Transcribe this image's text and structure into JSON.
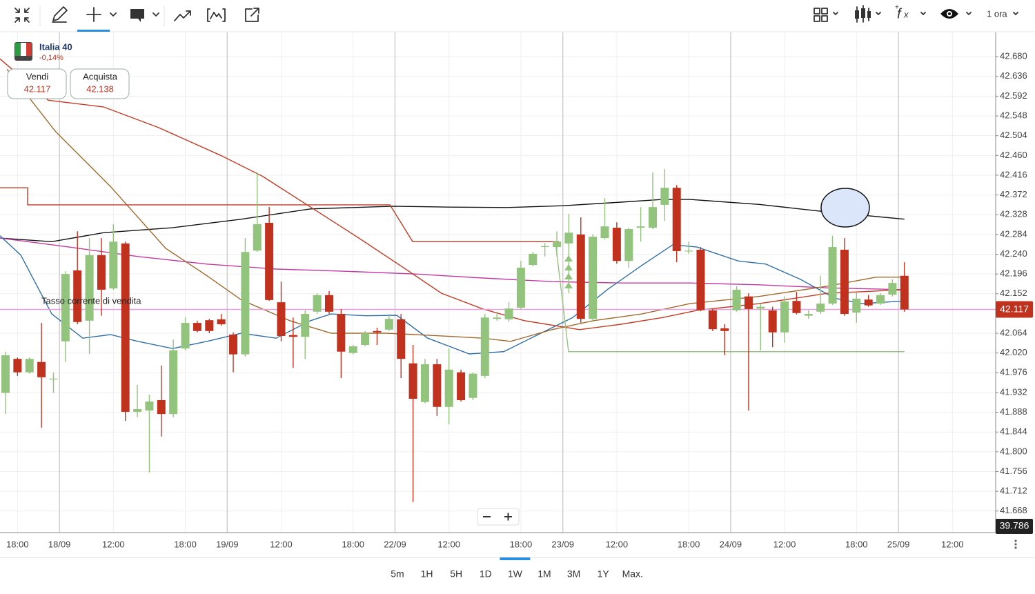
{
  "toolbar": {
    "interval": "1 ora"
  },
  "instrument": {
    "name": "Italia 40",
    "change": "-0,14%",
    "sell_label": "Vendi",
    "sell_price": 42.117,
    "buy_label": "Acquista",
    "buy_price": 42.138
  },
  "annotation": "Tasso corrente di vendita",
  "timeframes": [
    "5m",
    "1H",
    "5H",
    "1D",
    "1W",
    "1M",
    "3M",
    "1Y",
    "Max."
  ],
  "selected_timeframe": 4,
  "chart_data": {
    "type": "candlestick",
    "up_color": "#93c47d",
    "down_color": "#c0321e",
    "x": [
      0,
      1,
      2,
      3,
      4,
      5,
      6,
      7,
      8,
      9,
      10,
      11,
      12,
      13,
      14,
      15,
      16,
      17,
      18,
      19,
      20,
      21,
      22,
      23,
      24,
      25,
      26,
      27,
      28,
      29,
      30,
      31,
      32,
      33,
      34,
      35,
      36,
      37,
      38,
      39,
      40,
      41,
      42,
      43,
      44,
      45,
      46,
      47,
      48,
      49,
      50,
      51,
      52,
      53,
      54,
      55,
      56,
      57,
      58,
      59,
      60,
      61,
      62,
      63,
      64,
      65,
      66,
      67,
      68,
      69,
      70,
      71,
      72,
      73,
      74,
      75
    ],
    "open": [
      41.931,
      42.007,
      41.977,
      42.0,
      41.961,
      42.046,
      42.204,
      42.092,
      42.238,
      42.164,
      42.264,
      41.889,
      41.892,
      41.915,
      41.884,
      42.03,
      42.087,
      42.093,
      42.095,
      42.061,
      42.017,
      42.248,
      42.31,
      42.133,
      42.06,
      42.056,
      42.112,
      42.149,
      42.107,
      42.02,
      42.038,
      42.069,
      42.072,
      42.095,
      41.997,
      41.911,
      41.995,
      41.9,
      41.977,
      41.92,
      41.969,
      42.096,
      42.095,
      42.121,
      42.216,
      42.256,
      42.256,
      42.264,
      42.284,
      42.096,
      42.276,
      42.299,
      42.225,
      42.299,
      42.299,
      42.35,
      42.388,
      42.247,
      42.25,
      42.115,
      42.075,
      42.115,
      42.146,
      42.119,
      42.115,
      42.066,
      42.136,
      42.103,
      42.112,
      42.13,
      42.25,
      42.11,
      42.139,
      42.13,
      42.15,
      42.192
    ],
    "high": [
      42.023,
      42.01,
      42.01,
      42.087,
      41.977,
      42.202,
      42.291,
      42.276,
      42.276,
      42.307,
      42.268,
      41.949,
      41.927,
      41.992,
      42.05,
      42.099,
      42.092,
      42.096,
      42.107,
      42.066,
      42.276,
      42.422,
      42.345,
      42.179,
      42.099,
      42.115,
      42.153,
      42.158,
      42.118,
      42.038,
      42.069,
      42.076,
      42.107,
      42.107,
      42.038,
      42.007,
      42.007,
      42.03,
      41.983,
      41.977,
      42.107,
      42.112,
      42.133,
      42.225,
      42.245,
      42.265,
      42.291,
      42.33,
      42.322,
      42.284,
      42.365,
      42.311,
      42.299,
      42.345,
      42.422,
      42.43,
      42.394,
      42.268,
      42.256,
      42.118,
      42.084,
      42.169,
      42.153,
      42.13,
      42.123,
      42.146,
      42.156,
      42.115,
      42.192,
      42.281,
      42.276,
      42.156,
      42.149,
      42.153,
      42.184,
      42.222
    ],
    "low": [
      41.884,
      41.969,
      41.974,
      41.854,
      41.931,
      42.0,
      42.084,
      42.018,
      42.103,
      42.161,
      41.869,
      41.877,
      41.754,
      41.834,
      41.877,
      42.026,
      42.066,
      42.064,
      42.081,
      41.977,
      42.012,
      42.245,
      42.136,
      42.046,
      41.987,
      42.007,
      42.107,
      42.107,
      41.964,
      42.017,
      42.035,
      42.038,
      42.069,
      41.964,
      41.688,
      41.908,
      41.88,
      41.861,
      41.912,
      41.915,
      41.964,
      42.092,
      42.089,
      42.118,
      42.213,
      42.235,
      42.235,
      42.153,
      42.087,
      42.089,
      42.273,
      42.219,
      42.21,
      42.268,
      42.296,
      42.314,
      42.222,
      42.241,
      42.113,
      42.069,
      42.015,
      42.112,
      41.892,
      42.026,
      42.033,
      42.043,
      42.106,
      42.096,
      42.107,
      42.127,
      42.103,
      42.087,
      42.123,
      42.127,
      42.146,
      42.112
    ],
    "close": [
      42.015,
      41.977,
      42.007,
      41.966,
      41.963,
      42.196,
      42.089,
      42.238,
      42.161,
      42.268,
      41.889,
      41.895,
      41.912,
      41.884,
      42.026,
      42.087,
      42.069,
      42.069,
      42.084,
      42.017,
      42.245,
      42.307,
      42.138,
      42.058,
      42.056,
      42.107,
      42.149,
      42.112,
      42.023,
      42.035,
      42.064,
      42.066,
      42.096,
      42.007,
      41.918,
      41.995,
      41.9,
      41.983,
      41.915,
      41.974,
      42.099,
      42.099,
      42.119,
      42.21,
      42.241,
      42.258,
      42.268,
      42.288,
      42.096,
      42.279,
      42.302,
      42.225,
      42.296,
      42.302,
      42.345,
      42.388,
      42.247,
      42.248,
      42.116,
      42.073,
      42.069,
      42.161,
      42.118,
      42.123,
      42.066,
      42.135,
      42.109,
      42.107,
      42.13,
      42.256,
      42.107,
      42.141,
      42.126,
      42.149,
      42.176,
      42.117
    ],
    "lines": [
      {
        "color": "#111111",
        "x": [
          -0.46,
          3.86,
          8.18,
          13.93,
          19.69,
          25.45,
          32.35,
          36.96,
          41.85,
          46.52,
          51.35,
          54.81,
          57.11,
          62.87,
          68.62,
          75
        ],
        "values": [
          42.276,
          42.268,
          42.288,
          42.299,
          42.318,
          42.341,
          42.347,
          42.345,
          42.344,
          42.348,
          42.356,
          42.362,
          42.362,
          42.351,
          42.334,
          42.318
        ]
      },
      {
        "color": "#c2399f",
        "x": [
          -0.46,
          5.3,
          11.05,
          16.81,
          22.57,
          28.33,
          34.08,
          39.84,
          45.6,
          51.35,
          57.11,
          62.87,
          68.62,
          75
        ],
        "values": [
          42.276,
          42.256,
          42.235,
          42.218,
          42.207,
          42.202,
          42.196,
          42.187,
          42.179,
          42.176,
          42.176,
          42.172,
          42.165,
          42.161
        ]
      },
      {
        "color": "#2f6fa8",
        "x": [
          -0.46,
          1.27,
          3.86,
          6.45,
          8.75,
          11.05,
          13.93,
          16.81,
          19.69,
          22.57,
          25.45,
          27.17,
          30.05,
          32.64,
          35.23,
          38.69,
          41.57,
          44.44,
          47.32,
          50.2,
          53.08,
          55.67,
          57.69,
          61.14,
          63.44,
          66.32,
          69.2,
          71.5,
          75
        ],
        "values": [
          42.281,
          42.238,
          42.107,
          42.053,
          42.061,
          42.046,
          42.03,
          42.046,
          42.064,
          42.053,
          42.092,
          42.107,
          42.103,
          42.104,
          42.053,
          42.018,
          42.023,
          42.061,
          42.099,
          42.161,
          42.215,
          42.261,
          42.256,
          42.225,
          42.218,
          42.184,
          42.142,
          42.13,
          42.136
        ]
      },
      {
        "color": "#c23a22",
        "x": [
          -0.46,
          3.57,
          8.18,
          12.78,
          17.96,
          21.42,
          25.45,
          29.48,
          32.93,
          36.38,
          39.84,
          43.29,
          47.9,
          51.35,
          54.81,
          57.69,
          62.87,
          68.62,
          75
        ],
        "values": [
          42.675,
          42.583,
          42.568,
          42.522,
          42.46,
          42.414,
          42.345,
          42.276,
          42.215,
          42.153,
          42.118,
          42.092,
          42.072,
          42.084,
          42.099,
          42.115,
          42.13,
          42.153,
          42.161
        ]
      },
      {
        "color": "#a0682a",
        "x": [
          0.12,
          4.15,
          8.75,
          13.36,
          16.81,
          19.69,
          23.72,
          27.17,
          31.78,
          36.38,
          39.84,
          42.14,
          45.6,
          49.05,
          53.08,
          57.11,
          62.87,
          68.62,
          72.65,
          75
        ],
        "values": [
          42.652,
          42.514,
          42.391,
          42.253,
          42.192,
          42.138,
          42.092,
          42.064,
          42.064,
          42.058,
          42.053,
          42.046,
          42.072,
          42.092,
          42.107,
          42.13,
          42.146,
          42.169,
          42.189,
          42.189
        ]
      },
      {
        "color": "#c23a22",
        "x": [
          -0.46,
          1.84,
          1.84,
          32.07,
          33.97,
          46.17
        ],
        "values": [
          42.388,
          42.388,
          42.35,
          42.35,
          42.268,
          42.268
        ]
      },
      {
        "color": "#93c47d",
        "x": [
          45.88,
          46.98,
          75
        ],
        "values": [
          42.268,
          42.023,
          42.023
        ]
      }
    ],
    "current_price": {
      "value": 42.117,
      "line_color": "#ec9be3",
      "color": "#c0321e"
    },
    "last_label": 39.786,
    "xlim": [
      -0.46,
      82.44
    ],
    "xticks": [
      {
        "value": 1,
        "label": "18:00"
      },
      {
        "value": 4.5,
        "label": "18/09"
      },
      {
        "value": 9,
        "label": "12:00"
      },
      {
        "value": 15,
        "label": "18:00"
      },
      {
        "value": 18.5,
        "label": "19/09"
      },
      {
        "value": 23,
        "label": "12:00"
      },
      {
        "value": 29,
        "label": "18:00"
      },
      {
        "value": 32.5,
        "label": "22/09"
      },
      {
        "value": 37,
        "label": "12:00"
      },
      {
        "value": 43,
        "label": "18:00"
      },
      {
        "value": 46.5,
        "label": "23/09"
      },
      {
        "value": 51,
        "label": "12:00"
      },
      {
        "value": 57,
        "label": "18:00"
      },
      {
        "value": 60.5,
        "label": "24/09"
      },
      {
        "value": 65,
        "label": "12:00"
      },
      {
        "value": 71,
        "label": "18:00"
      },
      {
        "value": 74.5,
        "label": "25/09"
      },
      {
        "value": 79,
        "label": "12:00"
      }
    ],
    "ylim": [
      41.62,
      42.734
    ],
    "yticks": [
      {
        "value": 42.68,
        "label": "42.680"
      },
      42.636,
      42.592,
      42.548,
      42.504,
      {
        "value": 42.46,
        "label": "42.460"
      },
      42.416,
      42.372,
      42.328,
      42.284,
      {
        "value": 42.24,
        "label": "42.240"
      },
      42.196,
      42.152,
      42.064,
      {
        "value": 42.02,
        "label": "42.020"
      },
      41.976,
      41.932,
      41.888,
      41.844,
      {
        "value": 41.8,
        "label": "41.800"
      },
      41.756,
      41.712,
      41.668
    ],
    "grid": true
  }
}
